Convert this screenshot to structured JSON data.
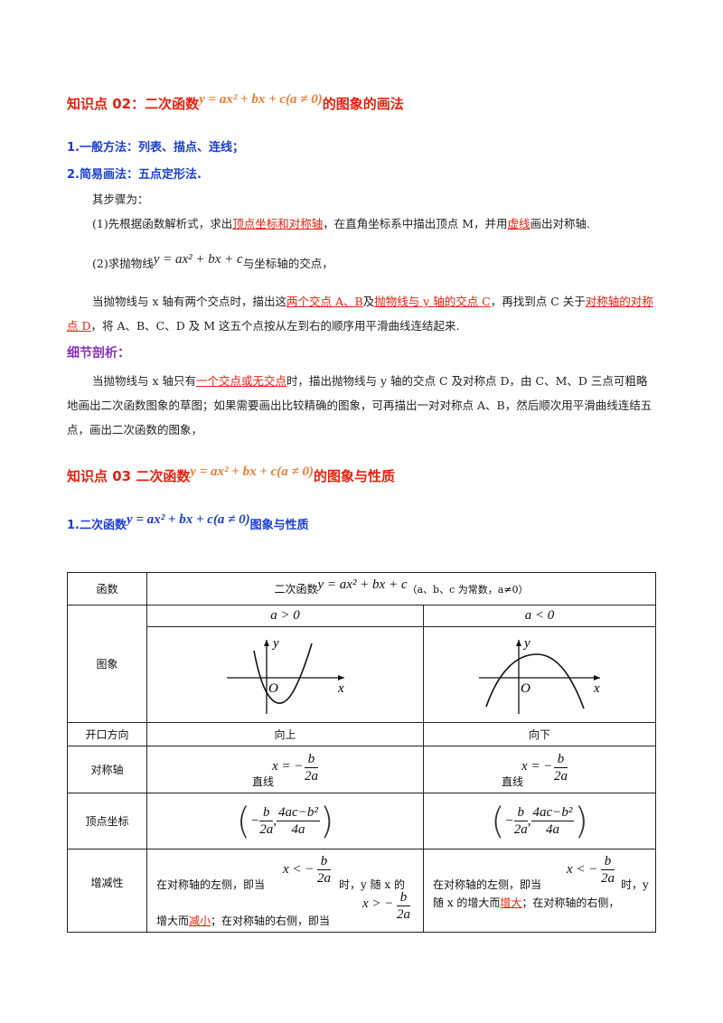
{
  "s02": {
    "title_a": "知识点 02：二次函数",
    "formula": "y = ax² + bx + c(a ≠ 0)",
    "title_b": "的图象的画法",
    "item1": "1.一般方法：列表、描点、连线；",
    "item2": "2.简易画法：五点定形法.",
    "steps_intro": "其步骤为：",
    "step1_a": "(1)先根据函数解析式，求出",
    "step1_hl1": "顶点坐标和对称轴",
    "step1_b": "，在直角坐标系中描出顶点 M，并用",
    "step1_hl2": "虚线",
    "step1_c": "画出对称轴.",
    "step2_a": "(2)求抛物线",
    "step2_formula": "y = ax² + bx + c",
    "step2_b": "与坐标轴的交点，",
    "para_a": "当抛物线与 x 轴有两个交点时，描出这",
    "para_hl1": "两个交点 A、B",
    "para_b": "及",
    "para_hl2": "抛物线与 y 轴的交点 C",
    "para_c": "，再找到点 C 关于",
    "para_hl3": "对称轴的对称点 D",
    "para_d": "，将 A、B、C、D 及 M 这五个点按从左到右的顺序用平滑曲线连结起来.",
    "detail_title": "细节剖析：",
    "detail_a": "当抛物线与 x 轴只有",
    "detail_hl": "一个交点或无交点",
    "detail_b": "时，描出抛物线与 y 轴的交点 C 及对称点 D，由 C、M、D 三点可粗略地画出二次函数图象的草图；如果需要画出比较精确的图象，可再描出一对对称点 A、B，然后顺次用平滑曲线连结五点，画出二次函数的图象，"
  },
  "s03": {
    "title_a": "知识点 03 二次函数",
    "formula": "y = ax² + bx + c(a ≠ 0)",
    "title_b": "的图象与性质",
    "sub_a": "1.二次函数",
    "sub_formula": "y = ax² + bx + c(a ≠ 0)",
    "sub_b": "图象与性质"
  },
  "table": {
    "r1_label": "函数",
    "r1_a": "二次函数",
    "r1_formula": "y = ax² + bx + c",
    "r1_b": "（a、b、c 为常数，a≠0）",
    "col_pos": "a > 0",
    "col_neg": "a < 0",
    "r2_label": "图象",
    "axis_x": "x",
    "axis_y": "y",
    "origin": "O",
    "r3_label": "开口方向",
    "r3_pos": "向上",
    "r3_neg": "向下",
    "r4_label": "对称轴",
    "line_word": "直线",
    "x_eq": "x = −",
    "b": "b",
    "two_a": "2a",
    "r5_label": "顶点坐标",
    "neg": "−",
    "four_ac": "4ac−b²",
    "four_a": "4a",
    "r6_label": "增减性",
    "pos_text_a": "在对称轴的左侧，即当",
    "pos_text_b": "时，y 随 x 的",
    "pos_text_c": "增大而",
    "pos_hl": "减小",
    "pos_text_d": "；在对称轴的右侧，即当",
    "x_lt": "x < −",
    "x_gt": "x > −",
    "neg_text_a": "在对称轴的左侧，即当",
    "neg_text_b": "时，y",
    "neg_text_c": "随 x 的增大而",
    "neg_hl": "增大",
    "neg_text_d": "；在对称轴的右侧，"
  }
}
